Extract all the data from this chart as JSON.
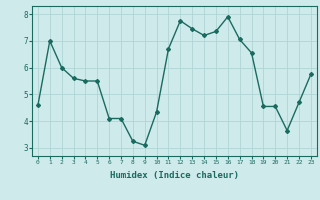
{
  "x": [
    0,
    1,
    2,
    3,
    4,
    5,
    6,
    7,
    8,
    9,
    10,
    11,
    12,
    13,
    14,
    15,
    16,
    17,
    18,
    19,
    20,
    21,
    22,
    23
  ],
  "y": [
    4.6,
    7.0,
    6.0,
    5.6,
    5.5,
    5.5,
    4.1,
    4.1,
    3.25,
    3.1,
    4.35,
    6.7,
    7.75,
    7.45,
    7.2,
    7.35,
    7.9,
    7.05,
    6.55,
    4.55,
    4.55,
    3.65,
    4.7,
    5.75
  ],
  "line_color": "#1a6b5f",
  "bg_color": "#ceeaea",
  "grid_color": "#b0d4d4",
  "tick_color": "#1a6b5f",
  "xlabel": "Humidex (Indice chaleur)",
  "ylim": [
    2.7,
    8.3
  ],
  "xlim": [
    -0.5,
    23.5
  ],
  "yticks": [
    3,
    4,
    5,
    6,
    7,
    8
  ],
  "xticks": [
    0,
    1,
    2,
    3,
    4,
    5,
    6,
    7,
    8,
    9,
    10,
    11,
    12,
    13,
    14,
    15,
    16,
    17,
    18,
    19,
    20,
    21,
    22,
    23
  ]
}
